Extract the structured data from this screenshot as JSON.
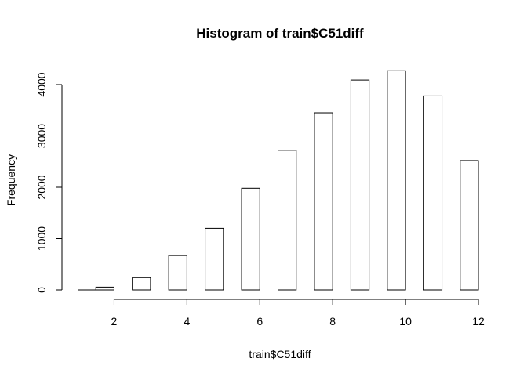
{
  "chart_data": {
    "type": "bar",
    "subtype": "histogram",
    "title": "Histogram of train$C51diff",
    "xlabel": "train$C51diff",
    "ylabel": "Frequency",
    "bins": [
      {
        "start": 1.0,
        "end": 1.5,
        "count": 0
      },
      {
        "start": 1.5,
        "end": 2.0,
        "count": 55
      },
      {
        "start": 2.5,
        "end": 3.0,
        "count": 240
      },
      {
        "start": 3.5,
        "end": 4.0,
        "count": 670
      },
      {
        "start": 4.5,
        "end": 5.0,
        "count": 1200
      },
      {
        "start": 5.5,
        "end": 6.0,
        "count": 1980
      },
      {
        "start": 6.5,
        "end": 7.0,
        "count": 2720
      },
      {
        "start": 7.5,
        "end": 8.0,
        "count": 3450
      },
      {
        "start": 8.5,
        "end": 9.0,
        "count": 4090
      },
      {
        "start": 9.5,
        "end": 10.0,
        "count": 4270
      },
      {
        "start": 10.5,
        "end": 11.0,
        "count": 3780
      },
      {
        "start": 11.5,
        "end": 12.0,
        "count": 2520
      }
    ],
    "xticks": [
      2,
      4,
      6,
      8,
      10,
      12
    ],
    "yticks": [
      0,
      1000,
      2000,
      3000,
      4000
    ],
    "xlim": [
      1,
      12
    ],
    "ylim": [
      0,
      4000
    ],
    "bar_fill": "#ffffff",
    "bar_stroke": "#000000",
    "grid": false,
    "legend": "none"
  }
}
